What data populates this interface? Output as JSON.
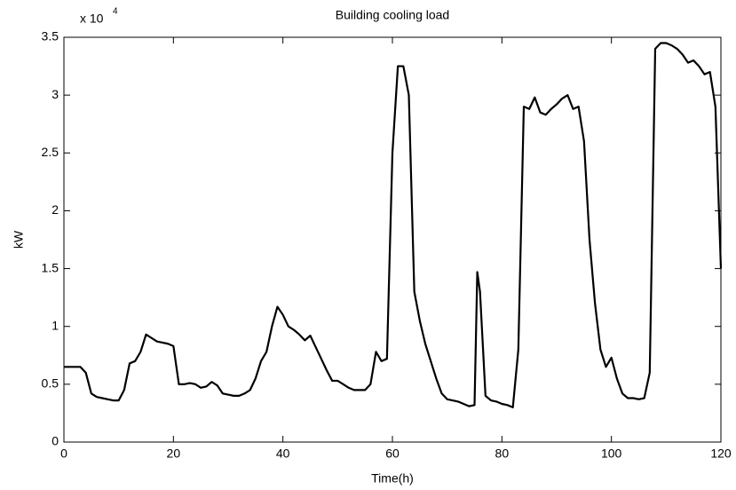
{
  "chart_data": {
    "type": "line",
    "title": "Building cooling load",
    "x_label": "Time(h)",
    "y_label": "kW",
    "y_multiplier_base": "x 10",
    "y_multiplier_exponent": "4",
    "x": [
      0,
      1,
      2,
      3,
      4,
      5,
      6,
      7,
      8,
      9,
      10,
      11,
      12,
      13,
      14,
      15,
      16,
      17,
      18,
      19,
      20,
      21,
      22,
      23,
      24,
      25,
      26,
      27,
      28,
      29,
      30,
      31,
      32,
      33,
      34,
      35,
      36,
      37,
      38,
      39,
      40,
      41,
      42,
      43,
      44,
      45,
      46,
      47,
      48,
      49,
      50,
      51,
      52,
      53,
      54,
      55,
      56,
      57,
      58,
      59,
      60,
      61,
      62,
      63,
      64,
      65,
      66,
      67,
      68,
      69,
      70,
      71,
      72,
      73,
      74,
      75,
      75.5,
      76,
      77,
      78,
      79,
      80,
      81,
      82,
      83,
      84,
      85,
      86,
      87,
      88,
      89,
      90,
      91,
      92,
      93,
      94,
      95,
      96,
      97,
      98,
      99,
      100,
      101,
      102,
      103,
      104,
      105,
      106,
      107,
      108,
      109,
      110,
      111,
      112,
      113,
      114,
      115,
      116,
      117,
      118,
      119,
      120
    ],
    "series": [
      {
        "name": "Building cooling load",
        "color": "#000000",
        "values": [
          0.65,
          0.65,
          0.65,
          0.65,
          0.6,
          0.42,
          0.39,
          0.38,
          0.37,
          0.36,
          0.36,
          0.45,
          0.68,
          0.7,
          0.78,
          0.93,
          0.9,
          0.87,
          0.86,
          0.85,
          0.83,
          0.5,
          0.5,
          0.51,
          0.5,
          0.47,
          0.48,
          0.52,
          0.49,
          0.42,
          0.41,
          0.4,
          0.4,
          0.42,
          0.45,
          0.55,
          0.7,
          0.78,
          1.0,
          1.17,
          1.1,
          1.0,
          0.97,
          0.93,
          0.88,
          0.92,
          0.82,
          0.72,
          0.62,
          0.53,
          0.53,
          0.5,
          0.47,
          0.45,
          0.45,
          0.45,
          0.5,
          0.78,
          0.7,
          0.72,
          2.5,
          3.25,
          3.25,
          3.0,
          1.3,
          1.05,
          0.85,
          0.7,
          0.55,
          0.42,
          0.37,
          0.36,
          0.35,
          0.33,
          0.31,
          0.32,
          1.47,
          1.3,
          0.4,
          0.36,
          0.35,
          0.33,
          0.32,
          0.3,
          0.8,
          2.9,
          2.88,
          2.98,
          2.85,
          2.83,
          2.88,
          2.92,
          2.97,
          3.0,
          2.88,
          2.9,
          2.6,
          1.75,
          1.2,
          0.8,
          0.65,
          0.73,
          0.55,
          0.42,
          0.38,
          0.38,
          0.37,
          0.38,
          0.6,
          3.4,
          3.45,
          3.45,
          3.43,
          3.4,
          3.35,
          3.28,
          3.3,
          3.25,
          3.18,
          3.2,
          2.9,
          1.5
        ]
      }
    ],
    "xlim": [
      0,
      120
    ],
    "xticks": [
      0,
      20,
      40,
      60,
      80,
      100,
      120
    ],
    "ylim": [
      0,
      3.5
    ],
    "yticks": [
      0,
      0.5,
      1,
      1.5,
      2,
      2.5,
      3,
      3.5
    ],
    "grid": false
  }
}
